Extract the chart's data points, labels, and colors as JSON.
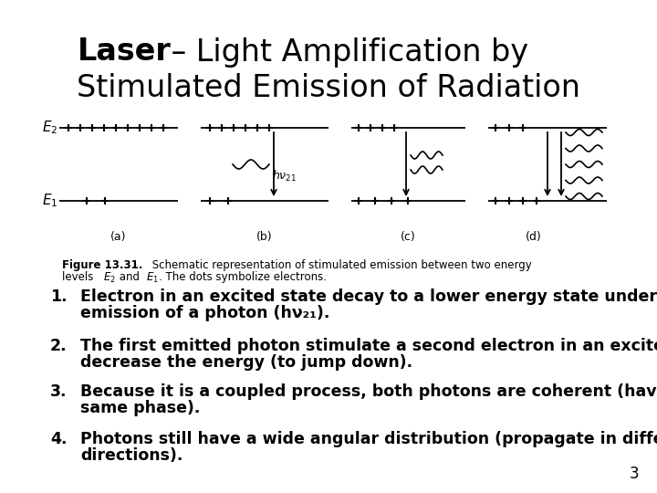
{
  "title_bold": "Laser",
  "title_rest": " – Light Amplification by",
  "title_line2": "Stimulated Emission of Radiation",
  "title_fontsize": 24,
  "body_fontsize": 12.5,
  "caption_fontsize": 8.5,
  "fig_caption_bold": "Figure 13.31.",
  "fig_caption_normal": " Schematic representation of stimulated emission between two energy\nlevels ",
  "fig_caption_e2": "E",
  "fig_caption_sub2": "2",
  "fig_caption_and": " and ",
  "fig_caption_e1": "E",
  "fig_caption_sub1": "1",
  "fig_caption_end": ". The dots symbolize electrons.",
  "items_lines": [
    [
      "Electron in an excited state decay to a lower energy state under the",
      "emission of a photon (hν₂₁)."
    ],
    [
      "The first emitted photon stimulate a second electron in an excited state to",
      "decrease the energy (to jump down)."
    ],
    [
      "Because it is a coupled process, both photons are coherent (have the",
      "same phase)."
    ],
    [
      "Photons still have a wide angular distribution (propagate in different",
      "directions)."
    ]
  ],
  "page_number": "3",
  "bg_color": "#ffffff",
  "text_color": "#000000"
}
